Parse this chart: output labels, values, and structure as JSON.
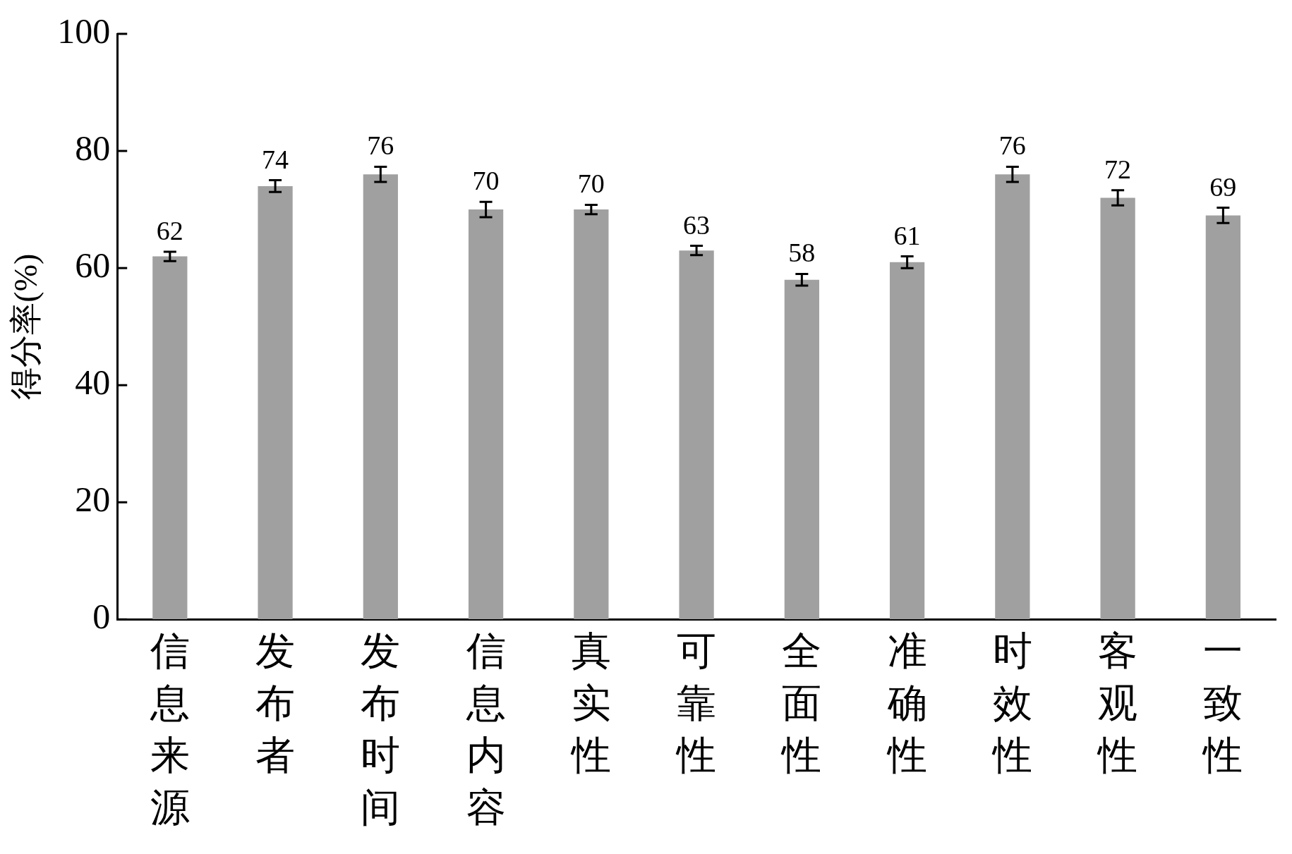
{
  "chart_data": {
    "type": "bar",
    "ylabel": "得分率(%)",
    "categories": [
      "信息来源",
      "发布者",
      "发布时间",
      "信息内容",
      "真实性",
      "可靠性",
      "全面性",
      "准确性",
      "时效性",
      "客观性",
      "一致性"
    ],
    "values": [
      62,
      74,
      76,
      70,
      70,
      63,
      58,
      61,
      76,
      72,
      69
    ],
    "errors": [
      0.8,
      1,
      1.3,
      1.3,
      0.8,
      0.8,
      1,
      1,
      1.3,
      1.3,
      1.3
    ],
    "color": "#a0a0a0",
    "ylim": [
      0,
      100
    ],
    "yticks": [
      0,
      20,
      40,
      60,
      80,
      100
    ],
    "data_labels": true,
    "legend": false
  }
}
